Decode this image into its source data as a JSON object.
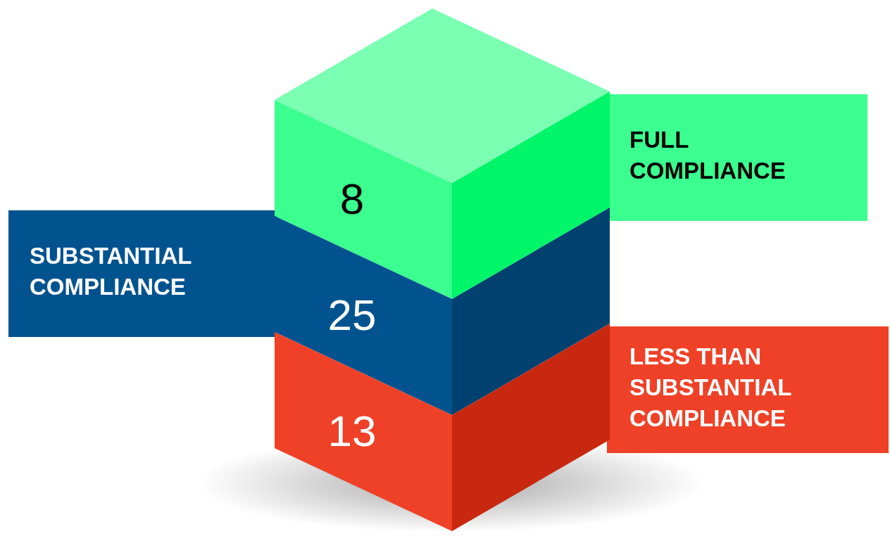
{
  "chart_data": {
    "type": "other",
    "categories": [
      "FULL COMPLIANCE",
      "SUBSTANTIAL COMPLIANCE",
      "LESS THAN SUBSTANTIAL COMPLIANCE"
    ],
    "values": [
      8,
      25,
      13
    ],
    "colors": [
      "#3bff8f",
      "#00538f",
      "#ee4127"
    ],
    "data_labels": true
  }
}
